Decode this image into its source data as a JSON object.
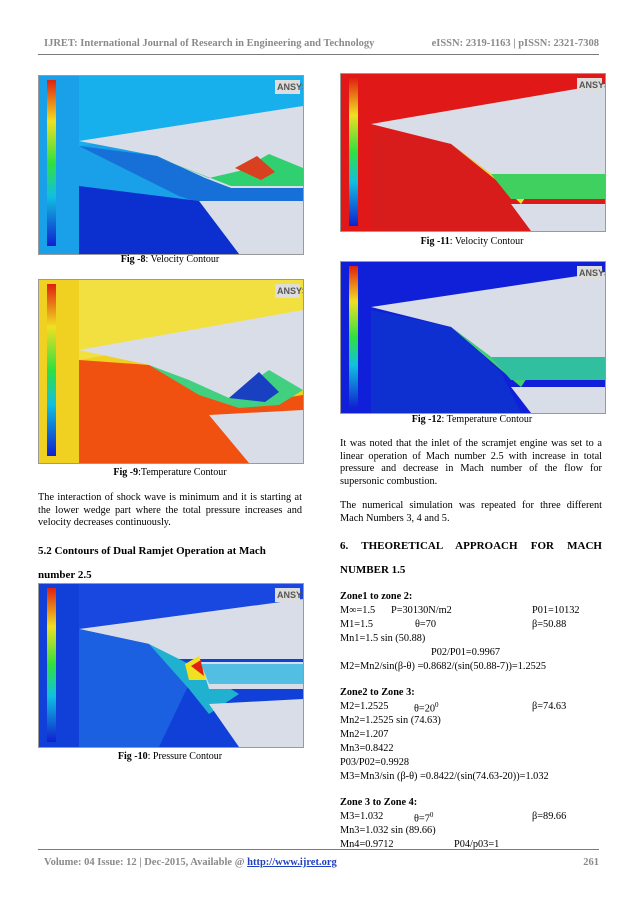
{
  "header": {
    "journal": "IJRET: International Journal of Research in Engineering and Technology",
    "issn": "eISSN: 2319-1163 | pISSN: 2321-7308"
  },
  "figures": {
    "fig8": {
      "label": "Fig -8",
      "title": ": Velocity Contour"
    },
    "fig9": {
      "label": "Fig -9",
      "title": ":Temperature Contour"
    },
    "fig10": {
      "label": "Fig -10",
      "title": ": Pressure Contour"
    },
    "fig11": {
      "label": "Fig -11",
      "title": ": Velocity Contour"
    },
    "fig12": {
      "label": "Fig -12",
      "title": ": Temperature Contour"
    }
  },
  "ansys_logo": "ANSYS",
  "left_col": {
    "para1": "The interaction of shock wave is minimum and it is starting at the lower wedge part where the total pressure increases and velocity decreases continuously.",
    "section_heading": "5.2 Contours of Dual Ramjet Operation at Mach number 2.5"
  },
  "right_col": {
    "para1": "It was noted that the inlet of the scramjet engine was set to a linear operation of Mach number 2.5 with increase in total pressure and decrease in Mach number of the flow for supersonic combustion.",
    "para2": "The numerical simulation was repeated for three different Mach Numbers 3, 4 and 5.",
    "section_heading": "6. THEORETICAL APPROACH FOR MACH NUMBER 1.5",
    "zone1_heading": "Zone1 to zone 2:",
    "z1_l1a": "M∞=1.5",
    "z1_l1b": "P=30130N/m2",
    "z1_l1c": "P01=10132",
    "z1_l2a": "M1=1.5",
    "z1_l2b": "θ=70",
    "z1_l2c": "β=50.88",
    "z1_l3": "Mn1=1.5 sin (50.88)",
    "z1_l4": "P02/P01=0.9967",
    "z1_l5": "M2=Mn2/sin(β-θ) =0.8682/(sin(50.88-7))=1.2525",
    "zone2_heading": "Zone2 to Zone 3:",
    "z2_l1a": "M2=1.2525",
    "z2_l1b": "θ=20",
    "z2_l1b_sup": "0",
    "z2_l1c": "β=74.63",
    "z2_l2": "Mn2=1.2525 sin (74.63)",
    "z2_l3": "Mn2=1.207",
    "z2_l4": "Mn3=0.8422",
    "z2_l5": "P03/P02=0.9928",
    "z2_l6": "M3=Mn3/sin (β-θ) =0.8422/(sin(74.63-20))=1.032",
    "zone3_heading": "Zone 3 to Zone 4:",
    "z3_l1a": "M3=1.032",
    "z3_l1b": "θ=7",
    "z3_l1b_sup": "0",
    "z3_l1c": "β=89.66",
    "z3_l2": "Mn3=1.032 sin (89.66)",
    "z3_l3a": "Mn4=0.9712",
    "z3_l3b": "P04/p03=1"
  },
  "footer": {
    "volume": "Volume: 04 Issue: 12 | Dec-2015, Available @ ",
    "url": "http://www.ijret.org",
    "page": "261"
  }
}
